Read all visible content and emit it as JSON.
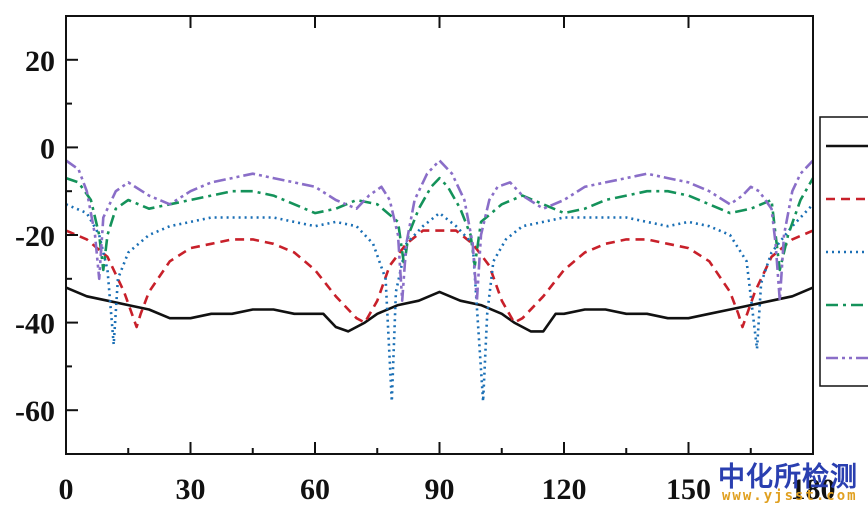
{
  "chart_data": {
    "type": "line",
    "xlim": [
      0,
      180
    ],
    "ylim": [
      -70,
      30
    ],
    "xticks": [
      "0",
      "30",
      "60",
      "90",
      "120",
      "150",
      "180"
    ],
    "yticks": [
      "20",
      "0",
      "-20",
      "-40",
      "-60"
    ],
    "legend_position": "right",
    "series": [
      {
        "color": "#111111",
        "style": "solid",
        "x": [
          0,
          5,
          10,
          15,
          20,
          25,
          30,
          35,
          40,
          45,
          50,
          55,
          60,
          62,
          65,
          68,
          72,
          75,
          80,
          85,
          90,
          95,
          100,
          105,
          108,
          112,
          115,
          118,
          120,
          125,
          130,
          135,
          140,
          145,
          150,
          155,
          160,
          165,
          170,
          175,
          180
        ],
        "y": [
          -32,
          -34,
          -35,
          -36,
          -37,
          -39,
          -39,
          -38,
          -38,
          -37,
          -37,
          -38,
          -38,
          -38,
          -41,
          -42,
          -40,
          -38,
          -36,
          -35,
          -33,
          -35,
          -36,
          -38,
          -40,
          -42,
          -42,
          -38,
          -38,
          -37,
          -37,
          -38,
          -38,
          -39,
          -39,
          -38,
          -37,
          -36,
          -35,
          -34,
          -32
        ]
      },
      {
        "color": "#c8202a",
        "style": "dashed",
        "x": [
          0,
          5,
          10,
          14,
          17,
          18,
          20,
          25,
          30,
          35,
          40,
          45,
          50,
          55,
          60,
          65,
          70,
          72,
          75,
          78,
          82,
          86,
          90,
          94,
          98,
          102,
          105,
          108,
          110,
          115,
          120,
          125,
          130,
          135,
          140,
          145,
          150,
          155,
          160,
          162,
          163,
          166,
          170,
          175,
          180
        ],
        "y": [
          -19,
          -21,
          -25,
          -33,
          -41,
          -38,
          -33,
          -26,
          -23,
          -22,
          -21,
          -21,
          -22,
          -24,
          -28,
          -34,
          -39,
          -40,
          -35,
          -27,
          -22,
          -19,
          -19,
          -19,
          -22,
          -27,
          -35,
          -40,
          -39,
          -34,
          -28,
          -24,
          -22,
          -21,
          -21,
          -22,
          -23,
          -26,
          -33,
          -38,
          -41,
          -33,
          -25,
          -21,
          -19
        ]
      },
      {
        "color": "#1a6fb5",
        "style": "dotted",
        "x": [
          0,
          5,
          8,
          10,
          11.5,
          12.5,
          15,
          20,
          25,
          30,
          35,
          40,
          45,
          50,
          55,
          60,
          65,
          70,
          74,
          77,
          78.5,
          79.5,
          82,
          86,
          90,
          94,
          98,
          100.5,
          101.5,
          103,
          106,
          110,
          115,
          120,
          125,
          130,
          135,
          140,
          145,
          150,
          155,
          160,
          164,
          166.5,
          167.5,
          170,
          175,
          180
        ],
        "y": [
          -13,
          -15,
          -20,
          -28,
          -45,
          -30,
          -24,
          -20,
          -18,
          -17,
          -16,
          -16,
          -16,
          -16,
          -17,
          -18,
          -17,
          -18,
          -22,
          -30,
          -58,
          -33,
          -22,
          -18,
          -15,
          -18,
          -22,
          -58,
          -38,
          -26,
          -21,
          -18,
          -17,
          -16,
          -16,
          -16,
          -16,
          -17,
          -18,
          -17,
          -18,
          -20,
          -26,
          -46,
          -31,
          -24,
          -18,
          -13
        ]
      },
      {
        "color": "#14925a",
        "style": "dashdot",
        "x": [
          0,
          3,
          6,
          8,
          9,
          10,
          12,
          15,
          20,
          25,
          30,
          35,
          40,
          45,
          50,
          55,
          60,
          65,
          70,
          75,
          80,
          81.5,
          82.5,
          85,
          88,
          90,
          92,
          95,
          97.5,
          98.5,
          100,
          105,
          110,
          115,
          120,
          125,
          130,
          135,
          140,
          145,
          150,
          155,
          160,
          165,
          170,
          171,
          172,
          174,
          177,
          180
        ],
        "y": [
          -7,
          -8,
          -12,
          -20,
          -28,
          -20,
          -14,
          -12,
          -14,
          -13,
          -12,
          -11,
          -10,
          -10,
          -11,
          -13,
          -15,
          -14,
          -12,
          -13,
          -17,
          -27,
          -20,
          -14,
          -9,
          -7,
          -9,
          -14,
          -20,
          -27,
          -17,
          -13,
          -11,
          -13,
          -15,
          -14,
          -12,
          -11,
          -10,
          -10,
          -11,
          -13,
          -15,
          -14,
          -12,
          -20,
          -28,
          -20,
          -12,
          -7
        ]
      },
      {
        "color": "#8a6ec8",
        "style": "dashdotdot",
        "x": [
          0,
          3,
          5,
          7,
          8,
          9,
          12,
          15,
          20,
          25,
          30,
          35,
          40,
          45,
          50,
          55,
          60,
          65,
          70,
          73,
          76,
          78,
          80,
          81,
          82,
          84,
          87,
          90,
          93,
          96,
          98,
          99,
          100,
          102,
          104,
          107,
          110,
          115,
          120,
          125,
          130,
          135,
          140,
          145,
          150,
          155,
          160,
          163,
          165,
          167,
          170,
          171,
          172,
          173,
          175,
          177,
          180
        ],
        "y": [
          -3,
          -5,
          -10,
          -20,
          -30,
          -16,
          -10,
          -8,
          -11,
          -13,
          -10,
          -8,
          -7,
          -6,
          -7,
          -8,
          -9,
          -12,
          -14,
          -11,
          -9,
          -12,
          -20,
          -35,
          -22,
          -12,
          -6,
          -3,
          -6,
          -12,
          -22,
          -35,
          -20,
          -12,
          -9,
          -8,
          -11,
          -14,
          -12,
          -9,
          -8,
          -7,
          -6,
          -7,
          -8,
          -10,
          -13,
          -11,
          -9,
          -10,
          -14,
          -22,
          -35,
          -20,
          -10,
          -6,
          -3
        ]
      }
    ]
  },
  "watermark": {
    "text_cn": "中化所检测",
    "text_url": "www.yjsst.com"
  }
}
